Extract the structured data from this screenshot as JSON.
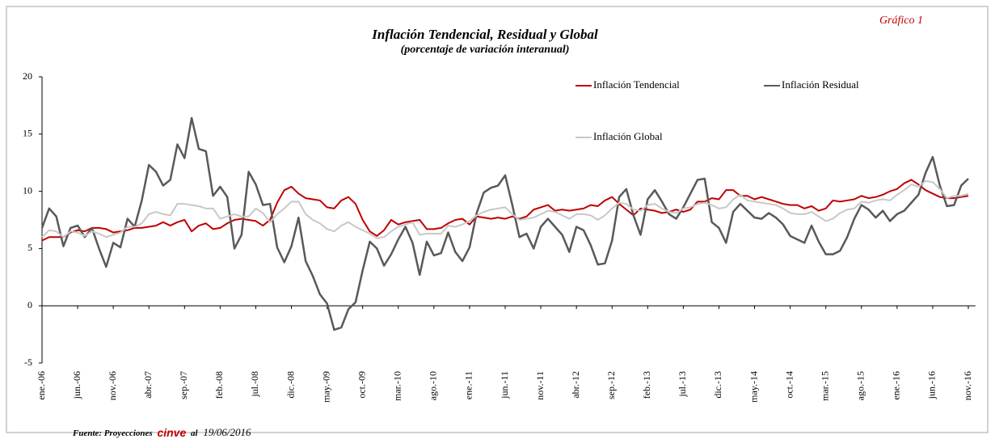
{
  "chart_data": {
    "type": "line",
    "corner_note": "Gráfico 1",
    "title": "Inflación Tendencial, Residual y Global",
    "subtitle": "(porcentaje de variación interanual)",
    "source": [
      "Fuente: Proyecciones",
      "cinve",
      "al",
      "19/06/2016"
    ],
    "categories": [
      "ene.-06",
      null,
      null,
      null,
      null,
      "jun.-06",
      null,
      null,
      null,
      null,
      "nov.-06",
      null,
      null,
      null,
      null,
      "abr.-07",
      null,
      null,
      null,
      null,
      "sep.-07",
      null,
      null,
      null,
      null,
      "feb.-08",
      null,
      null,
      null,
      null,
      "jul.-08",
      null,
      null,
      null,
      null,
      "dic.-08",
      null,
      null,
      null,
      null,
      "may.-09",
      null,
      null,
      null,
      null,
      "oct.-09",
      null,
      null,
      null,
      null,
      "mar.-10",
      null,
      null,
      null,
      null,
      "ago.-10",
      null,
      null,
      null,
      null,
      "ene.-11",
      null,
      null,
      null,
      null,
      "jun.-11",
      null,
      null,
      null,
      null,
      "nov.-11",
      null,
      null,
      null,
      null,
      "abr.-12",
      null,
      null,
      null,
      null,
      "sep.-12",
      null,
      null,
      null,
      null,
      "feb.-13",
      null,
      null,
      null,
      null,
      "jul.-13",
      null,
      null,
      null,
      null,
      "dic.-13",
      null,
      null,
      null,
      null,
      "may.-14",
      null,
      null,
      null,
      null,
      "oct.-14",
      null,
      null,
      null,
      null,
      "mar.-15",
      null,
      null,
      null,
      null,
      "ago.-15",
      null,
      null,
      null,
      null,
      "ene.-16",
      null,
      null,
      null,
      null,
      "jun.-16",
      null,
      null,
      null,
      null,
      "nov.-16"
    ],
    "series": [
      {
        "name": "Inflación Tendencial",
        "color": "#c00000",
        "values": [
          5.7,
          6.0,
          6.0,
          6.0,
          6.4,
          6.6,
          6.5,
          6.8,
          6.8,
          6.7,
          6.4,
          6.5,
          6.6,
          6.8,
          6.8,
          6.9,
          7.0,
          7.3,
          7.0,
          7.3,
          7.5,
          6.5,
          7.0,
          7.2,
          6.7,
          6.8,
          7.2,
          7.5,
          7.6,
          7.5,
          7.4,
          7.0,
          7.5,
          9.0,
          10.1,
          10.4,
          9.8,
          9.4,
          9.3,
          9.2,
          8.6,
          8.5,
          9.2,
          9.5,
          8.9,
          7.5,
          6.5,
          6.1,
          6.6,
          7.5,
          7.1,
          7.3,
          7.4,
          7.5,
          6.7,
          6.7,
          6.8,
          7.2,
          7.5,
          7.6,
          7.1,
          7.8,
          7.7,
          7.6,
          7.7,
          7.6,
          7.8,
          7.6,
          7.8,
          8.4,
          8.6,
          8.8,
          8.3,
          8.4,
          8.3,
          8.4,
          8.5,
          8.8,
          8.7,
          9.2,
          9.5,
          8.9,
          8.4,
          7.9,
          8.5,
          8.4,
          8.3,
          8.1,
          8.2,
          8.4,
          8.2,
          8.4,
          9.1,
          9.1,
          9.4,
          9.3,
          10.1,
          10.1,
          9.6,
          9.6,
          9.3,
          9.5,
          9.3,
          9.1,
          8.9,
          8.8,
          8.8,
          8.5,
          8.7,
          8.3,
          8.5,
          9.2,
          9.1,
          9.2,
          9.3,
          9.6,
          9.4,
          9.5,
          9.7,
          10.0,
          10.2,
          10.7,
          11.0,
          10.6,
          10.1,
          9.8,
          9.5,
          9.4,
          9.4,
          9.5,
          9.6
        ]
      },
      {
        "name": "Inflación Residual",
        "color": "#595959",
        "values": [
          6.8,
          8.5,
          7.8,
          5.2,
          6.8,
          7.0,
          6.0,
          6.8,
          5.0,
          3.4,
          5.5,
          5.1,
          7.6,
          6.9,
          9.2,
          12.3,
          11.7,
          10.5,
          11.0,
          14.1,
          12.9,
          16.4,
          13.7,
          13.5,
          9.6,
          10.4,
          9.5,
          5.0,
          6.2,
          11.7,
          10.6,
          8.8,
          8.9,
          5.1,
          3.8,
          5.2,
          7.7,
          3.9,
          2.6,
          1.0,
          0.2,
          -2.1,
          -1.9,
          -0.3,
          0.3,
          3.1,
          5.6,
          5.0,
          3.5,
          4.5,
          5.8,
          6.9,
          5.5,
          2.7,
          5.6,
          4.4,
          4.6,
          6.4,
          4.7,
          3.9,
          5.1,
          8.1,
          9.9,
          10.3,
          10.5,
          11.4,
          8.8,
          6.0,
          6.3,
          5.0,
          6.9,
          7.6,
          6.9,
          6.2,
          4.7,
          6.9,
          6.6,
          5.3,
          3.6,
          3.7,
          5.7,
          9.5,
          10.2,
          7.9,
          6.2,
          9.3,
          10.1,
          9.1,
          8.0,
          7.6,
          8.6,
          9.8,
          11.0,
          11.1,
          7.3,
          6.8,
          5.5,
          8.2,
          8.9,
          8.3,
          7.7,
          7.6,
          8.1,
          7.7,
          7.1,
          6.1,
          5.8,
          5.5,
          7.0,
          5.6,
          4.5,
          4.5,
          4.8,
          6.0,
          7.6,
          8.8,
          8.4,
          7.7,
          8.3,
          7.4,
          8.0,
          8.3,
          9.0,
          9.7,
          11.6,
          13.0,
          10.5,
          8.7,
          8.8,
          10.5,
          11.1
        ]
      },
      {
        "name": "Inflación Global",
        "color": "#c8c8c8",
        "values": [
          6.0,
          6.6,
          6.5,
          6.0,
          6.5,
          6.4,
          6.1,
          6.5,
          6.3,
          6.0,
          6.2,
          6.4,
          6.9,
          6.9,
          7.2,
          8.0,
          8.2,
          8.0,
          7.9,
          8.9,
          8.9,
          8.8,
          8.7,
          8.5,
          8.5,
          7.6,
          7.8,
          8.0,
          7.8,
          7.8,
          8.5,
          8.1,
          7.3,
          8.0,
          8.5,
          9.1,
          9.1,
          8.0,
          7.5,
          7.2,
          6.7,
          6.5,
          7.0,
          7.3,
          6.9,
          6.6,
          6.3,
          5.9,
          6.0,
          6.5,
          6.9,
          7.1,
          7.3,
          6.2,
          6.3,
          6.3,
          6.3,
          7.0,
          6.9,
          7.1,
          7.4,
          7.9,
          8.2,
          8.4,
          8.5,
          8.6,
          8.0,
          7.5,
          7.6,
          7.7,
          8.0,
          8.3,
          8.2,
          7.9,
          7.6,
          8.0,
          8.0,
          7.9,
          7.5,
          7.9,
          8.5,
          9.0,
          8.9,
          8.4,
          8.3,
          8.8,
          8.9,
          8.5,
          8.2,
          8.1,
          8.5,
          8.6,
          8.9,
          9.0,
          8.8,
          8.5,
          8.6,
          9.3,
          9.7,
          9.2,
          9.1,
          9.0,
          8.9,
          8.8,
          8.5,
          8.1,
          8.0,
          8.0,
          8.2,
          7.8,
          7.4,
          7.6,
          8.1,
          8.4,
          8.5,
          9.1,
          9.0,
          9.2,
          9.3,
          9.2,
          9.7,
          10.1,
          10.6,
          10.4,
          10.9,
          10.8,
          10.2,
          9.4,
          9.6,
          9.6,
          9.8
        ]
      }
    ],
    "ylim": [
      -5,
      20
    ],
    "yticks": [
      -5,
      0,
      5,
      10,
      15,
      20
    ],
    "grid": false
  }
}
